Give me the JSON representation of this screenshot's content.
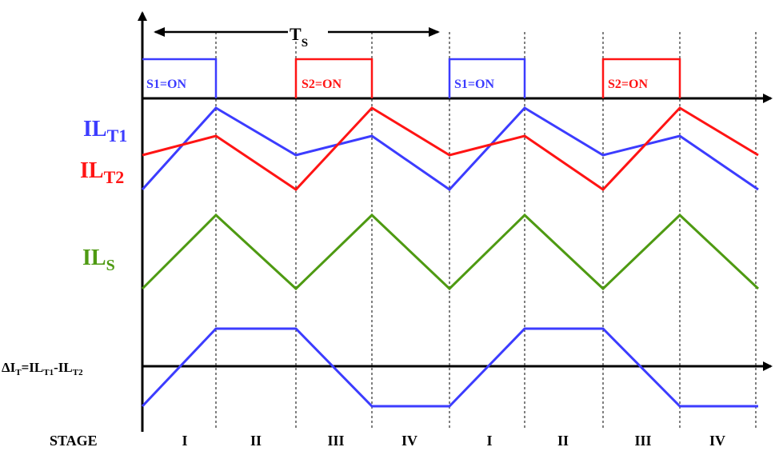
{
  "colors": {
    "blue": "#3c3cff",
    "red": "#ff1414",
    "green": "#4e9a12",
    "black": "#000000"
  },
  "period": {
    "main": "T",
    "sub": "S"
  },
  "switch_labels": {
    "s1": "S1=ON",
    "s2": "S2=ON"
  },
  "signals": {
    "ilt1": {
      "main": "IL",
      "sub": "T1"
    },
    "ilt2": {
      "main": "IL",
      "sub": "T2"
    },
    "ils": {
      "main": "IL",
      "sub": "S"
    },
    "delta": {
      "prefix": "ΔI",
      "prefix_sub": "T",
      "eq": "=IL",
      "t1": "T1",
      "mid": "-IL",
      "t2": "T2"
    }
  },
  "stage_label": "STAGE",
  "stages": [
    "I",
    "II",
    "III",
    "IV",
    "I",
    "II",
    "III",
    "IV"
  ]
}
